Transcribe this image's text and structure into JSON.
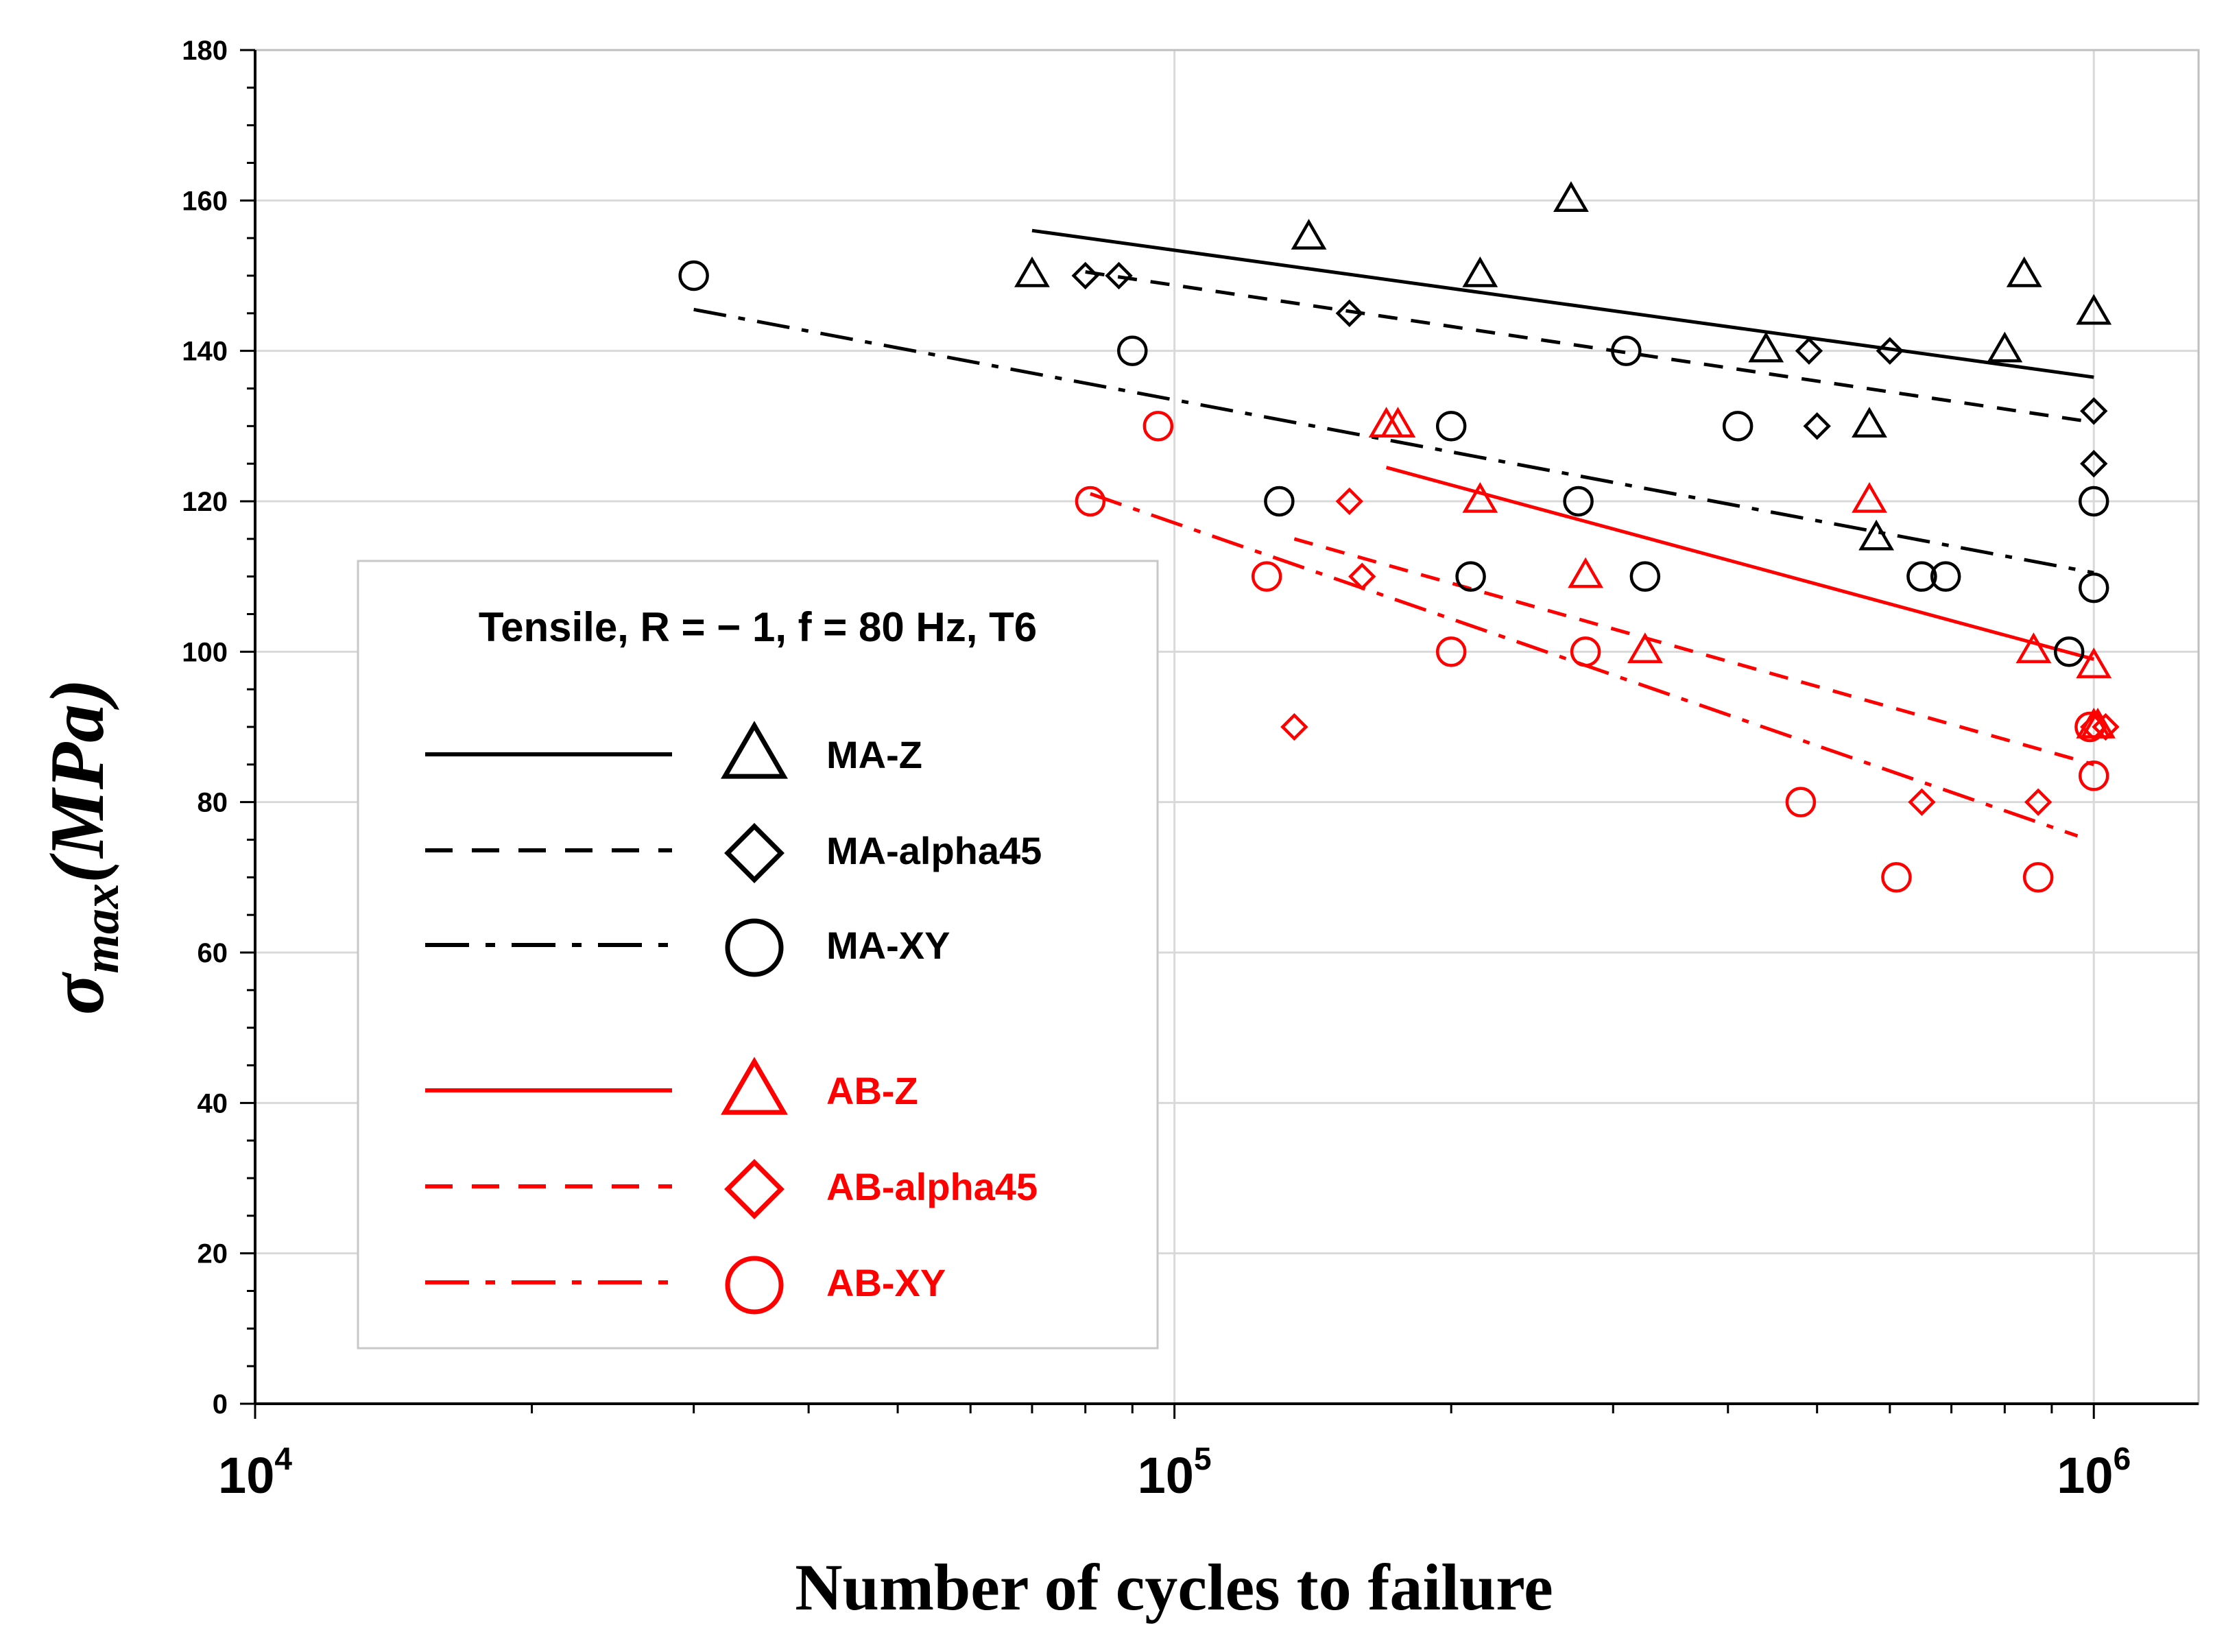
{
  "chart_data": {
    "type": "scatter",
    "title": "",
    "xlabel": "Number of cycles to failure",
    "ylabel": "σmax(MPa)",
    "ylabel_parts": {
      "symbol": "σ",
      "subscript": "max",
      "unit": "(MPa)"
    },
    "x_scale": "log",
    "xlim": [
      10000,
      1300000
    ],
    "ylim": [
      0,
      180
    ],
    "x_ticks": [
      {
        "value": 10000,
        "base": "10",
        "exponent": "4"
      },
      {
        "value": 100000,
        "base": "10",
        "exponent": "5"
      },
      {
        "value": 1000000,
        "base": "10",
        "exponent": "6"
      }
    ],
    "y_ticks": [
      0,
      20,
      40,
      60,
      80,
      100,
      120,
      140,
      160,
      180
    ],
    "grid": true,
    "legend": {
      "title": "Tensile, R = − 1, f = 80 Hz, T6",
      "placement": "lower-left"
    },
    "series": [
      {
        "name": "MA-Z",
        "color": "#000000",
        "marker": "triangle",
        "line": "solid",
        "points": [
          [
            70000,
            150
          ],
          [
            140000,
            155
          ],
          [
            215000,
            150
          ],
          [
            270000,
            160
          ],
          [
            440000,
            140
          ],
          [
            570000,
            130
          ],
          [
            580000,
            115
          ],
          [
            800000,
            140
          ],
          [
            840000,
            150
          ],
          [
            1000000,
            145
          ]
        ],
        "fit": [
          [
            70000,
            156
          ],
          [
            1000000,
            136.5
          ]
        ]
      },
      {
        "name": "MA-alpha45",
        "color": "#000000",
        "marker": "diamond",
        "line": "dashed",
        "points": [
          [
            80000,
            150
          ],
          [
            87000,
            150
          ],
          [
            155000,
            145
          ],
          [
            490000,
            140
          ],
          [
            500000,
            130
          ],
          [
            600000,
            140
          ],
          [
            1000000,
            132
          ],
          [
            1000000,
            125
          ]
        ],
        "fit": [
          [
            80000,
            150.5
          ],
          [
            1000000,
            130.5
          ]
        ]
      },
      {
        "name": "MA-XY",
        "color": "#000000",
        "marker": "circle",
        "line": "dashdot",
        "points": [
          [
            30000,
            150
          ],
          [
            90000,
            140
          ],
          [
            130000,
            120
          ],
          [
            200000,
            130
          ],
          [
            210000,
            110
          ],
          [
            275000,
            120
          ],
          [
            310000,
            140
          ],
          [
            325000,
            110
          ],
          [
            410000,
            130
          ],
          [
            650000,
            110
          ],
          [
            690000,
            110
          ],
          [
            940000,
            100
          ],
          [
            1000000,
            120
          ],
          [
            1000000,
            108.5
          ]
        ],
        "fit": [
          [
            30000,
            145.5
          ],
          [
            1000000,
            110.5
          ]
        ]
      },
      {
        "name": "AB-Z",
        "color": "#ff0000",
        "marker": "triangle",
        "line": "solid",
        "points": [
          [
            170000,
            130
          ],
          [
            175000,
            130
          ],
          [
            215000,
            120
          ],
          [
            280000,
            110
          ],
          [
            325000,
            100
          ],
          [
            570000,
            120
          ],
          [
            860000,
            100
          ],
          [
            1000000,
            98
          ],
          [
            1000000,
            90
          ],
          [
            1010000,
            90
          ]
        ],
        "fit": [
          [
            170000,
            124.5
          ],
          [
            1000000,
            99
          ]
        ]
      },
      {
        "name": "AB-alpha45",
        "color": "#ff0000",
        "marker": "diamond",
        "line": "dashed",
        "points": [
          [
            135000,
            90
          ],
          [
            155000,
            120
          ],
          [
            160000,
            110
          ],
          [
            650000,
            80
          ],
          [
            870000,
            80
          ],
          [
            1000000,
            90
          ],
          [
            1030000,
            90
          ]
        ],
        "fit": [
          [
            135000,
            115
          ],
          [
            1000000,
            85
          ]
        ]
      },
      {
        "name": "AB-XY",
        "color": "#ff0000",
        "marker": "circle",
        "line": "dashdot",
        "points": [
          [
            81000,
            120
          ],
          [
            96000,
            130
          ],
          [
            126000,
            110
          ],
          [
            200000,
            100
          ],
          [
            280000,
            100
          ],
          [
            480000,
            80
          ],
          [
            610000,
            70
          ],
          [
            870000,
            70
          ],
          [
            1000000,
            83.5
          ],
          [
            990000,
            90
          ]
        ],
        "fit": [
          [
            81000,
            121
          ],
          [
            960000,
            75.5
          ]
        ]
      }
    ]
  }
}
